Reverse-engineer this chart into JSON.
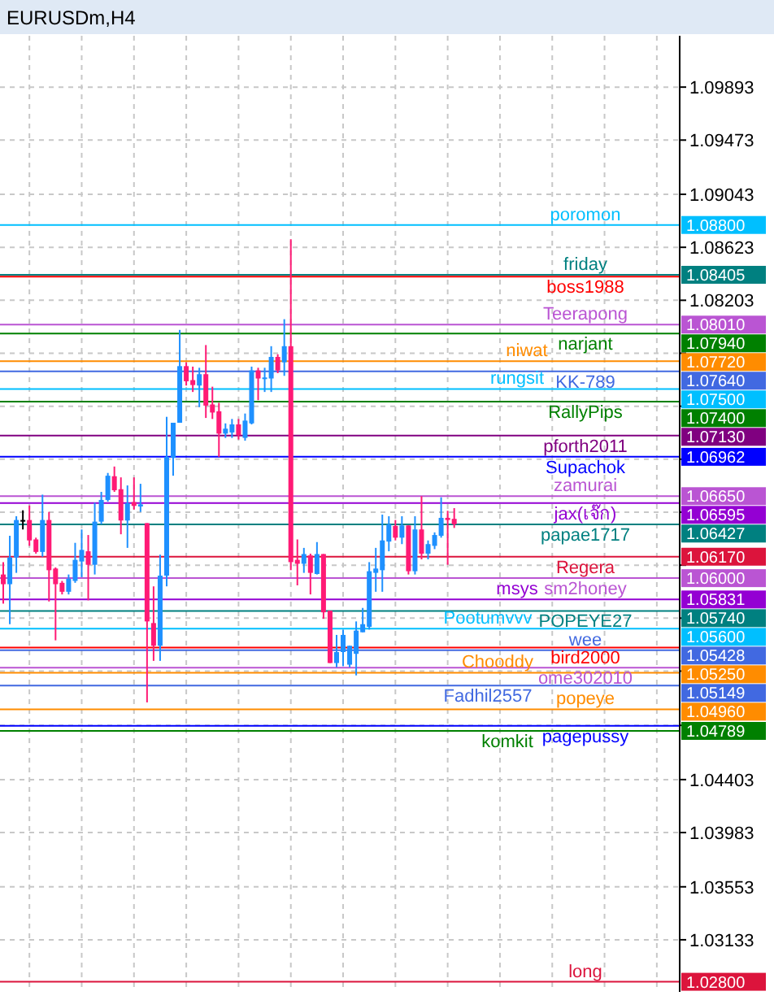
{
  "chart_data": {
    "type": "candlestick",
    "title": "EURUSDm,H4",
    "categories": [
      null,
      null,
      null,
      null,
      null,
      null,
      null,
      null,
      null,
      null,
      null,
      null,
      null,
      null,
      null,
      null,
      null,
      null,
      null,
      null,
      null,
      null,
      null,
      null,
      null,
      null,
      null,
      null,
      null,
      null,
      null,
      null,
      null,
      null,
      null,
      null,
      null,
      null,
      null,
      null,
      null,
      null,
      null,
      null,
      null,
      null,
      null,
      null,
      null,
      null,
      null,
      null,
      null,
      null,
      null,
      null,
      null,
      null,
      null,
      null,
      null,
      null,
      null,
      null,
      null,
      null,
      null,
      null,
      null,
      null,
      null,
      null,
      null,
      null,
      null,
      null,
      null,
      null,
      null,
      null,
      null,
      null,
      null,
      null,
      null,
      null,
      null,
      null,
      null,
      null,
      null,
      null,
      null,
      null,
      null,
      null,
      null,
      null,
      null,
      null,
      null,
      null,
      null,
      null
    ],
    "ohlc": [
      [
        1.06029,
        1.06127,
        1.05798,
        1.05952
      ],
      [
        1.05952,
        1.06336,
        1.05635,
        1.06164
      ],
      [
        1.06164,
        1.06491,
        1.06042,
        1.06461
      ],
      [
        1.06461,
        1.06538,
        1.06386,
        1.06461
      ],
      [
        1.06461,
        1.06576,
        1.06256,
        1.06299
      ],
      [
        1.06307,
        1.06321,
        1.06194,
        1.06208
      ],
      [
        1.06208,
        1.06662,
        1.0617,
        1.06461
      ],
      [
        1.06461,
        1.06525,
        1.05815,
        1.06063
      ],
      [
        1.06076,
        1.06085,
        1.05507,
        1.05952
      ],
      [
        1.05963,
        1.05978,
        1.05871,
        1.05892
      ],
      [
        1.05892,
        1.06029,
        1.05871,
        1.05995
      ],
      [
        1.05978,
        1.0628,
        1.05963,
        1.06145
      ],
      [
        1.06132,
        1.06386,
        1.06008,
        1.06224
      ],
      [
        1.06213,
        1.06342,
        1.05824,
        1.06106
      ],
      [
        1.06106,
        1.06598,
        1.06029,
        1.06448
      ],
      [
        1.06448,
        1.06684,
        1.06427,
        1.0662
      ],
      [
        1.0662,
        1.06834,
        1.06607,
        1.06812
      ],
      [
        1.06808,
        1.06885,
        1.06684,
        1.06697
      ],
      [
        1.06705,
        1.06799,
        1.06348,
        1.06457
      ],
      [
        1.06457,
        1.06735,
        1.0624,
        1.06594
      ],
      [
        1.06603,
        1.06799,
        1.06543,
        1.06573
      ],
      [
        1.06568,
        1.06748,
        1.06525,
        1.06585
      ],
      [
        1.06436,
        1.06436,
        1.05015,
        1.05657
      ],
      [
        1.05644,
        1.05935,
        1.05344,
        1.05464
      ],
      [
        1.05464,
        1.06186,
        1.05344,
        1.0602
      ],
      [
        1.0602,
        1.07279,
        1.05935,
        1.06962
      ],
      [
        1.06953,
        1.07232,
        1.06812,
        1.07232
      ],
      [
        1.07232,
        1.07968,
        1.07232,
        1.07681
      ],
      [
        1.07681,
        1.07711,
        1.07527,
        1.07561
      ],
      [
        1.0757,
        1.07677,
        1.07476,
        1.07531
      ],
      [
        1.07527,
        1.07668,
        1.07356,
        1.07617
      ],
      [
        1.07617,
        1.07848,
        1.0727,
        1.07368
      ],
      [
        1.07377,
        1.07518,
        1.07262,
        1.07313
      ],
      [
        1.07323,
        1.0739,
        1.06962,
        1.07146
      ],
      [
        1.07146,
        1.07227,
        1.07112,
        1.07185
      ],
      [
        1.07155,
        1.07262,
        1.07112,
        1.07219
      ],
      [
        1.07219,
        1.07262,
        1.07099,
        1.07133
      ],
      [
        1.07112,
        1.07305,
        1.0709,
        1.07249
      ],
      [
        1.07227,
        1.07677,
        1.07219,
        1.07647
      ],
      [
        1.07647,
        1.07668,
        1.07411,
        1.07583
      ],
      [
        1.07583,
        1.07668,
        1.07476,
        1.07591
      ],
      [
        1.07583,
        1.07839,
        1.07476,
        1.07754
      ],
      [
        1.07754,
        1.07775,
        1.07625,
        1.07647
      ],
      [
        1.07711,
        1.08053,
        1.07604,
        1.07839
      ],
      [
        1.07839,
        1.08687,
        1.06063,
        1.06127
      ],
      [
        1.06145,
        1.06307,
        1.05943,
        1.06114
      ],
      [
        1.06114,
        1.0624,
        1.06042,
        1.06191
      ],
      [
        1.0618,
        1.06194,
        1.05871,
        1.06042
      ],
      [
        1.06033,
        1.06286,
        1.06029,
        1.06191
      ],
      [
        1.06191,
        1.06191,
        1.05678,
        1.05729
      ],
      [
        1.05742,
        1.05742,
        1.05327,
        1.05327
      ],
      [
        1.05327,
        1.0555,
        1.05293,
        1.05414
      ],
      [
        1.05414,
        1.05592,
        1.05302,
        1.0555
      ],
      [
        1.05314,
        1.05464,
        1.05293,
        1.05464
      ],
      [
        1.054,
        1.05657,
        1.05229,
        1.05584
      ],
      [
        1.05571,
        1.05764,
        1.05571,
        1.05635
      ],
      [
        1.05614,
        1.06127,
        1.05592,
        1.06055
      ],
      [
        1.06042,
        1.0624,
        1.05892,
        1.06076
      ],
      [
        1.06063,
        1.06504,
        1.05892,
        1.06299
      ],
      [
        1.0629,
        1.06491,
        1.06213,
        1.06427
      ],
      [
        1.06414,
        1.06461,
        1.06299,
        1.06321
      ],
      [
        1.06321,
        1.06491,
        1.0627,
        1.06418
      ],
      [
        1.06418,
        1.06418,
        1.06029,
        1.06055
      ],
      [
        1.06055,
        1.06491,
        1.06029,
        1.06386
      ],
      [
        1.06386,
        1.0665,
        1.06149,
        1.06194
      ],
      [
        1.06194,
        1.06299,
        1.06149,
        1.0627
      ],
      [
        1.06256,
        1.06363,
        1.0623,
        1.06342
      ],
      [
        1.06336,
        1.06641,
        1.06321,
        1.06478
      ],
      [
        1.06478,
        1.06534,
        1.06106,
        1.06461
      ],
      [
        1.0647,
        1.06555,
        1.06398,
        1.06427
      ],
      null,
      null,
      null,
      null,
      null,
      null,
      null,
      null,
      null,
      null,
      null,
      null,
      null,
      null,
      null,
      null,
      null,
      null,
      null,
      null,
      null,
      null,
      null,
      null,
      null,
      null,
      null,
      null,
      null,
      null,
      null,
      null,
      null,
      null
    ],
    "colors": [
      "#ff1a75",
      "#1e90ff",
      "#1e90ff",
      "#000000",
      "#ff1a75",
      "#ff1a75",
      "#1e90ff",
      "#ff1a75",
      "#ff1a75",
      "#ff1a75",
      "#1e90ff",
      "#1e90ff",
      "#1e90ff",
      "#ff1a75",
      "#1e90ff",
      "#1e90ff",
      "#1e90ff",
      "#ff1a75",
      "#ff1a75",
      "#1e90ff",
      "#ff1a75",
      "#1e90ff",
      "#ff1a75",
      "#ff1a75",
      "#1e90ff",
      "#1e90ff",
      "#1e90ff",
      "#1e90ff",
      "#ff1a75",
      "#ff1a75",
      "#1e90ff",
      "#ff1a75",
      "#ff1a75",
      "#ff1a75",
      "#1e90ff",
      "#1e90ff",
      "#ff1a75",
      "#1e90ff",
      "#1e90ff",
      "#ff1a75",
      "#1e90ff",
      "#1e90ff",
      "#ff1a75",
      "#1e90ff",
      "#ff1a75",
      "#ff1a75",
      "#1e90ff",
      "#ff1a75",
      "#1e90ff",
      "#ff1a75",
      "#ff1a75",
      "#1e90ff",
      "#1e90ff",
      "#1e90ff",
      "#1e90ff",
      "#1e90ff",
      "#1e90ff",
      "#1e90ff",
      "#1e90ff",
      "#1e90ff",
      "#ff1a75",
      "#1e90ff",
      "#ff1a75",
      "#1e90ff",
      "#ff1a75",
      "#1e90ff",
      "#1e90ff",
      "#1e90ff",
      "#ff1a75",
      "#ff1a75",
      null,
      null,
      null,
      null,
      null,
      null,
      null,
      null,
      null,
      null,
      null,
      null,
      null,
      null,
      null,
      null,
      null,
      null,
      null,
      null,
      null,
      null,
      null,
      null,
      null,
      null,
      null,
      null,
      null,
      null,
      null,
      null,
      null,
      null
    ],
    "ylim": [
      1.0272,
      1.103
    ],
    "yticks": [
      1.09893,
      1.09473,
      1.09043,
      1.08623,
      1.08203,
      {
        "value": 1.07783,
        "label": null
      },
      {
        "value": 1.07363,
        "label": null
      },
      {
        "value": 1.06943,
        "label": null
      },
      {
        "value": 1.06523,
        "label": null
      },
      {
        "value": 1.06103,
        "label": null
      },
      {
        "value": 1.05683,
        "label": null
      },
      {
        "value": 1.05263,
        "label": null
      },
      {
        "value": 1.04833,
        "label": null
      },
      1.04403,
      1.03983,
      1.03553,
      1.03133
    ],
    "grid": true,
    "ref_lines": [
      {
        "axis": "y",
        "value": 1.088,
        "label": "poromon",
        "color": "#00bfff"
      },
      {
        "axis": "y",
        "value": 1.08405,
        "label": "friday",
        "color": "#008080"
      },
      {
        "axis": "y",
        "value": 1.0839,
        "label": "boss1988",
        "color": "#ff0000"
      },
      {
        "axis": "y",
        "value": 1.0801,
        "label": "Teerapong",
        "color": "#ba55d3"
      },
      {
        "axis": "y",
        "value": 1.0794,
        "label": "narjant",
        "color": "#008000"
      },
      {
        "axis": "y",
        "value": 1.0772,
        "label": "niwat",
        "color": "#ff8c00"
      },
      {
        "axis": "y",
        "value": 1.0764,
        "label": "KK-789",
        "color": "#4169e1"
      },
      {
        "axis": "y",
        "value": 1.075,
        "label": "rungsit",
        "color": "#00bfff"
      },
      {
        "axis": "y",
        "value": 1.074,
        "label": "RallyPips",
        "color": "#008000"
      },
      {
        "axis": "y",
        "value": 1.0713,
        "label": "pforth2011",
        "color": "#800080"
      },
      {
        "axis": "y",
        "value": 1.06962,
        "label": "Supachok",
        "color": "#0000ff"
      },
      {
        "axis": "y",
        "value": 1.0665,
        "label": "zamurai",
        "color": "#ba55d3"
      },
      {
        "axis": "y",
        "value": 1.06595,
        "label": "jax(เจ๊ก)",
        "color": "#9400d3"
      },
      {
        "axis": "y",
        "value": 1.06427,
        "label": "papae1717",
        "color": "#008080"
      },
      {
        "axis": "y",
        "value": 1.0617,
        "label": "Regera",
        "color": "#dc143c"
      },
      {
        "axis": "y",
        "value": 1.06,
        "label": "sm2honey",
        "color": "#ba55d3"
      },
      {
        "axis": "y",
        "value": 1.05831,
        "label": "msys",
        "color": "#9400d3"
      },
      {
        "axis": "y",
        "value": 1.0574,
        "label": "POPEYE27",
        "color": "#008080"
      },
      {
        "axis": "y",
        "value": 1.056,
        "label": "Pootumvvv",
        "color": "#00bfff"
      },
      {
        "axis": "y",
        "value": 1.0545,
        "label": "bird2000",
        "color": "#ff0000"
      },
      {
        "axis": "y",
        "value": 1.05428,
        "label": "wee",
        "color": "#4169e1"
      },
      {
        "axis": "y",
        "value": 1.0529,
        "label": "ome302010",
        "color": "#ba55d3"
      },
      {
        "axis": "y",
        "value": 1.0525,
        "label": "Chooddy",
        "color": "#ff8c00"
      },
      {
        "axis": "y",
        "value": 1.05149,
        "label": "Fadhil2557",
        "color": "#4169e1"
      },
      {
        "axis": "y",
        "value": 1.0496,
        "label": "popeye",
        "color": "#ff8c00"
      },
      {
        "axis": "y",
        "value": 1.0483,
        "label": "pagepussy",
        "color": "#0000ff"
      },
      {
        "axis": "y",
        "value": 1.04789,
        "label": "komkit",
        "color": "#008000"
      },
      {
        "axis": "y",
        "value": 1.028,
        "label": "long",
        "color": "#dc143c"
      }
    ],
    "annotations": [
      "1.08800",
      "1.08405",
      "1.08010",
      "1.07940",
      "1.07720",
      "1.07640",
      "1.07500",
      "1.07400",
      "1.07130",
      "1.06962",
      "1.06650",
      "1.06595",
      "1.06427",
      "1.06170",
      "1.06000",
      "1.05831",
      "1.05740",
      "1.05600",
      "1.05428",
      "1.05250",
      "1.05149",
      "1.04960",
      "1.04789",
      "1.02800"
    ]
  }
}
